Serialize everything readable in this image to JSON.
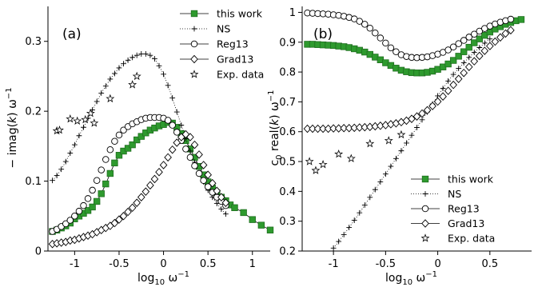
{
  "figure_colors": {
    "accent": "#2e9a2e",
    "accent_edge": "#1f6e1f",
    "ink": "#000000"
  },
  "chart_data": [
    {
      "type": "scatter",
      "panel_label": "(a)",
      "xlabel": "log10 ω−1",
      "ylabel": "− imag(k) ω−1",
      "xlim": [
        -1.3,
        1.2
      ],
      "ylim": [
        0,
        0.35
      ],
      "xticks": [
        -1,
        -0.5,
        0,
        0.5,
        1
      ],
      "xtick_labels": [
        "-1",
        "-0.5",
        "0",
        "0.5",
        "1"
      ],
      "yticks": [
        0,
        0.1,
        0.2,
        0.3
      ],
      "ytick_labels": [
        "0",
        "0.1",
        "0.2",
        "0.3"
      ],
      "legend": {
        "position": "top-right",
        "entries": [
          "this work",
          "NS",
          "Reg13",
          "Grad13",
          "Exp. data"
        ]
      },
      "series": [
        {
          "name": "this work",
          "marker": "square-line",
          "x": [
            -1.25,
            -1.2,
            -1.15,
            -1.1,
            -1.05,
            -1,
            -0.95,
            -0.9,
            -0.85,
            -0.8,
            -0.75,
            -0.7,
            -0.65,
            -0.6,
            -0.55,
            -0.5,
            -0.45,
            -0.4,
            -0.35,
            -0.3,
            -0.25,
            -0.2,
            -0.15,
            -0.1,
            -0.05,
            0,
            0.05,
            0.1,
            0.15,
            0.2,
            0.25,
            0.3,
            0.35,
            0.4,
            0.45,
            0.5,
            0.55,
            0.6,
            0.65,
            0.7,
            0.75,
            0.8,
            0.9,
            1.0,
            1.1,
            1.2
          ],
          "y": [
            0.028,
            0.03,
            0.033,
            0.036,
            0.04,
            0.046,
            0.05,
            0.054,
            0.058,
            0.063,
            0.071,
            0.082,
            0.096,
            0.111,
            0.126,
            0.137,
            0.143,
            0.147,
            0.152,
            0.159,
            0.164,
            0.169,
            0.173,
            0.176,
            0.179,
            0.181,
            0.184,
            0.183,
            0.177,
            0.168,
            0.158,
            0.146,
            0.134,
            0.121,
            0.109,
            0.099,
            0.09,
            0.083,
            0.077,
            0.072,
            0.066,
            0.062,
            0.055,
            0.045,
            0.037,
            0.03
          ]
        },
        {
          "name": "NS",
          "marker": "plus-dotted",
          "x": [
            -1.25,
            -1.2,
            -1.15,
            -1.1,
            -1.05,
            -1,
            -0.95,
            -0.9,
            -0.85,
            -0.8,
            -0.75,
            -0.7,
            -0.65,
            -0.6,
            -0.55,
            -0.5,
            -0.45,
            -0.4,
            -0.35,
            -0.3,
            -0.25,
            -0.2,
            -0.15,
            -0.1,
            -0.05,
            0,
            0.05,
            0.1,
            0.15,
            0.2,
            0.25,
            0.3,
            0.35,
            0.4,
            0.45,
            0.5,
            0.55,
            0.6,
            0.65,
            0.7
          ],
          "y": [
            0.101,
            0.108,
            0.117,
            0.128,
            0.14,
            0.152,
            0.165,
            0.177,
            0.19,
            0.202,
            0.214,
            0.226,
            0.236,
            0.246,
            0.254,
            0.262,
            0.268,
            0.273,
            0.277,
            0.28,
            0.282,
            0.282,
            0.28,
            0.275,
            0.265,
            0.253,
            0.237,
            0.219,
            0.199,
            0.18,
            0.161,
            0.143,
            0.127,
            0.112,
            0.099,
            0.087,
            0.077,
            0.068,
            0.06,
            0.053
          ]
        },
        {
          "name": "Reg13",
          "marker": "circle",
          "x": [
            -1.25,
            -1.2,
            -1.15,
            -1.1,
            -1.05,
            -1,
            -0.95,
            -0.9,
            -0.85,
            -0.8,
            -0.75,
            -0.7,
            -0.65,
            -0.6,
            -0.55,
            -0.5,
            -0.45,
            -0.4,
            -0.35,
            -0.3,
            -0.25,
            -0.2,
            -0.15,
            -0.1,
            -0.05,
            0,
            0.05,
            0.1,
            0.15,
            0.2,
            0.25,
            0.3,
            0.35,
            0.4,
            0.45,
            0.5,
            0.55,
            0.6,
            0.65,
            0.7
          ],
          "y": [
            0.028,
            0.031,
            0.035,
            0.039,
            0.044,
            0.05,
            0.057,
            0.065,
            0.075,
            0.087,
            0.101,
            0.116,
            0.131,
            0.145,
            0.157,
            0.166,
            0.173,
            0.178,
            0.182,
            0.185,
            0.188,
            0.19,
            0.191,
            0.191,
            0.191,
            0.19,
            0.187,
            0.18,
            0.17,
            0.158,
            0.146,
            0.134,
            0.122,
            0.111,
            0.101,
            0.092,
            0.084,
            0.077,
            0.071,
            0.065
          ]
        },
        {
          "name": "Grad13",
          "marker": "diamond",
          "x": [
            -1.25,
            -1.2,
            -1.15,
            -1.1,
            -1.05,
            -1,
            -0.95,
            -0.9,
            -0.85,
            -0.8,
            -0.75,
            -0.7,
            -0.65,
            -0.6,
            -0.55,
            -0.5,
            -0.45,
            -0.4,
            -0.35,
            -0.3,
            -0.25,
            -0.2,
            -0.15,
            -0.1,
            -0.05,
            0,
            0.05,
            0.1,
            0.15,
            0.2,
            0.25,
            0.3,
            0.35,
            0.4,
            0.45,
            0.5,
            0.55,
            0.6,
            0.65,
            0.7
          ],
          "y": [
            0.01,
            0.011,
            0.012,
            0.013,
            0.015,
            0.016,
            0.018,
            0.02,
            0.022,
            0.024,
            0.027,
            0.03,
            0.033,
            0.036,
            0.04,
            0.045,
            0.05,
            0.056,
            0.062,
            0.069,
            0.077,
            0.085,
            0.094,
            0.103,
            0.113,
            0.123,
            0.134,
            0.145,
            0.155,
            0.163,
            0.167,
            0.163,
            0.152,
            0.138,
            0.123,
            0.109,
            0.097,
            0.086,
            0.077,
            0.069
          ]
        },
        {
          "name": "Exp. data",
          "marker": "star",
          "x": [
            -1.2,
            -1.17,
            -1.05,
            -0.97,
            -0.88,
            -0.82,
            -0.78,
            -0.6,
            -0.35,
            -0.3
          ],
          "y": [
            0.172,
            0.173,
            0.189,
            0.186,
            0.188,
            0.197,
            0.183,
            0.218,
            0.238,
            0.25
          ]
        }
      ]
    },
    {
      "type": "scatter",
      "panel_label": "(b)",
      "xlabel": "log10 ω−1",
      "ylabel": "c0 real(k) ω−1",
      "xlim": [
        -1.3,
        0.9
      ],
      "ylim": [
        0.2,
        1.02
      ],
      "xticks": [
        -1,
        -0.5,
        0,
        0.5
      ],
      "xtick_labels": [
        "-1",
        "-0.5",
        "0",
        "0.5"
      ],
      "yticks": [
        0.2,
        0.3,
        0.4,
        0.5,
        0.6,
        0.7,
        0.8,
        0.9,
        1
      ],
      "ytick_labels": [
        "0.2",
        "0.3",
        "0.4",
        "0.5",
        "0.6",
        "0.7",
        "0.8",
        "0.9",
        "1"
      ],
      "legend": {
        "position": "bottom-right",
        "entries": [
          "this work",
          "NS",
          "Reg13",
          "Grad13",
          "Exp. data"
        ]
      },
      "series": [
        {
          "name": "this work",
          "marker": "square-line",
          "x": [
            -1.25,
            -1.2,
            -1.15,
            -1.1,
            -1.05,
            -1,
            -0.95,
            -0.9,
            -0.85,
            -0.8,
            -0.75,
            -0.7,
            -0.65,
            -0.6,
            -0.55,
            -0.5,
            -0.45,
            -0.4,
            -0.35,
            -0.3,
            -0.25,
            -0.2,
            -0.15,
            -0.1,
            -0.05,
            0,
            0.05,
            0.1,
            0.15,
            0.2,
            0.25,
            0.3,
            0.35,
            0.4,
            0.45,
            0.5,
            0.55,
            0.6,
            0.65,
            0.7,
            0.75,
            0.8
          ],
          "y": [
            0.893,
            0.893,
            0.892,
            0.891,
            0.89,
            0.889,
            0.887,
            0.885,
            0.882,
            0.878,
            0.873,
            0.867,
            0.859,
            0.85,
            0.841,
            0.831,
            0.822,
            0.813,
            0.806,
            0.801,
            0.798,
            0.797,
            0.797,
            0.799,
            0.803,
            0.809,
            0.817,
            0.827,
            0.839,
            0.853,
            0.868,
            0.883,
            0.898,
            0.911,
            0.923,
            0.934,
            0.944,
            0.952,
            0.96,
            0.966,
            0.972,
            0.976
          ]
        },
        {
          "name": "NS",
          "marker": "plus-dotted",
          "x": [
            -1.0,
            -0.95,
            -0.9,
            -0.85,
            -0.8,
            -0.75,
            -0.7,
            -0.65,
            -0.6,
            -0.55,
            -0.5,
            -0.45,
            -0.4,
            -0.35,
            -0.3,
            -0.25,
            -0.2,
            -0.15,
            -0.1,
            -0.05,
            0,
            0.05,
            0.1,
            0.15,
            0.2,
            0.25,
            0.3,
            0.35,
            0.4,
            0.45,
            0.5
          ],
          "y": [
            0.21,
            0.232,
            0.255,
            0.279,
            0.303,
            0.328,
            0.354,
            0.38,
            0.406,
            0.432,
            0.458,
            0.484,
            0.51,
            0.536,
            0.562,
            0.588,
            0.614,
            0.64,
            0.666,
            0.693,
            0.72,
            0.745,
            0.77,
            0.792,
            0.812,
            0.831,
            0.849,
            0.866,
            0.882,
            0.897,
            0.911
          ]
        },
        {
          "name": "Reg13",
          "marker": "circle",
          "x": [
            -1.25,
            -1.2,
            -1.15,
            -1.1,
            -1.05,
            -1,
            -0.95,
            -0.9,
            -0.85,
            -0.8,
            -0.75,
            -0.7,
            -0.65,
            -0.6,
            -0.55,
            -0.5,
            -0.45,
            -0.4,
            -0.35,
            -0.3,
            -0.25,
            -0.2,
            -0.15,
            -0.1,
            -0.05,
            0,
            0.05,
            0.1,
            0.15,
            0.2,
            0.25,
            0.3,
            0.35,
            0.4,
            0.45,
            0.5,
            0.55,
            0.6,
            0.65,
            0.7
          ],
          "y": [
            0.998,
            0.997,
            0.996,
            0.995,
            0.994,
            0.992,
            0.99,
            0.987,
            0.983,
            0.978,
            0.97,
            0.96,
            0.947,
            0.931,
            0.914,
            0.897,
            0.881,
            0.868,
            0.858,
            0.852,
            0.849,
            0.848,
            0.849,
            0.851,
            0.855,
            0.86,
            0.866,
            0.874,
            0.884,
            0.895,
            0.906,
            0.917,
            0.927,
            0.937,
            0.946,
            0.954,
            0.961,
            0.967,
            0.972,
            0.977
          ]
        },
        {
          "name": "Grad13",
          "marker": "diamond",
          "x": [
            -1.25,
            -1.2,
            -1.15,
            -1.1,
            -1.05,
            -1,
            -0.95,
            -0.9,
            -0.85,
            -0.8,
            -0.75,
            -0.7,
            -0.65,
            -0.6,
            -0.55,
            -0.5,
            -0.45,
            -0.4,
            -0.35,
            -0.3,
            -0.25,
            -0.2,
            -0.15,
            -0.1,
            -0.05,
            0,
            0.05,
            0.1,
            0.15,
            0.2,
            0.25,
            0.3,
            0.35,
            0.4,
            0.45,
            0.5,
            0.55,
            0.6,
            0.65,
            0.7
          ],
          "y": [
            0.61,
            0.61,
            0.61,
            0.61,
            0.61,
            0.611,
            0.611,
            0.612,
            0.612,
            0.613,
            0.614,
            0.615,
            0.616,
            0.618,
            0.62,
            0.622,
            0.625,
            0.628,
            0.632,
            0.637,
            0.643,
            0.651,
            0.661,
            0.672,
            0.686,
            0.701,
            0.718,
            0.737,
            0.757,
            0.777,
            0.797,
            0.817,
            0.836,
            0.854,
            0.871,
            0.887,
            0.902,
            0.916,
            0.929,
            0.94
          ]
        },
        {
          "name": "Exp. data",
          "marker": "star",
          "x": [
            -1.23,
            -1.17,
            -1.1,
            -0.95,
            -0.83,
            -0.65,
            -0.47,
            -0.35
          ],
          "y": [
            0.5,
            0.47,
            0.49,
            0.525,
            0.51,
            0.56,
            0.57,
            0.59
          ]
        }
      ]
    }
  ]
}
